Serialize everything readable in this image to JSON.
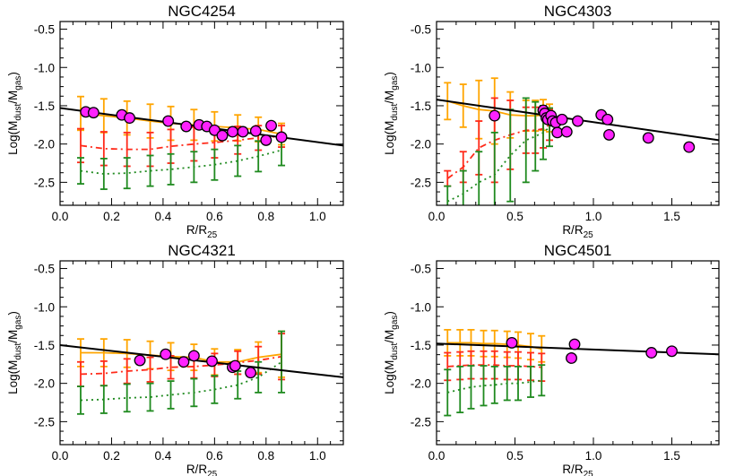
{
  "colors": {
    "orange": "#ffa500",
    "red": "#ff2a1a",
    "green": "#1f8a1f",
    "magenta": "#ff22ff",
    "fit": "#000000"
  },
  "chart_data": [
    {
      "type": "scatter",
      "title": "NGC4254",
      "xlabel": "R/R25",
      "ylabel": "Log(Mdust/Mgas)",
      "xlim": [
        0.0,
        1.1
      ],
      "ylim": [
        -2.8,
        -0.4
      ],
      "xticks": [
        0.0,
        0.2,
        0.4,
        0.6,
        0.8,
        1.0
      ],
      "xtick_labels": [
        "0.0",
        "0.2",
        "0.4",
        "0.6",
        "0.8",
        "1.0"
      ],
      "yticks": [
        -2.5,
        -2.0,
        -1.5,
        -1.0,
        -0.5
      ],
      "ytick_labels": [
        "-2.5",
        "-2.0",
        "-1.5",
        "-1.0",
        "-0.5"
      ],
      "fit_line": {
        "x": [
          0.0,
          1.1
        ],
        "y": [
          -1.53,
          -2.02
        ]
      },
      "points": {
        "x": [
          0.1,
          0.13,
          0.24,
          0.27,
          0.42,
          0.49,
          0.54,
          0.57,
          0.6,
          0.63,
          0.67,
          0.71,
          0.76,
          0.8,
          0.82,
          0.86
        ],
        "y": [
          -1.58,
          -1.59,
          -1.62,
          -1.66,
          -1.7,
          -1.77,
          -1.75,
          -1.77,
          -1.82,
          -1.89,
          -1.84,
          -1.84,
          -1.83,
          -1.95,
          -1.76,
          -1.91
        ]
      },
      "series": [
        {
          "name": "orange",
          "x": [
            0.08,
            0.17,
            0.26,
            0.35,
            0.43,
            0.52,
            0.6,
            0.69,
            0.77,
            0.86
          ],
          "y": [
            -1.6,
            -1.63,
            -1.66,
            -1.7,
            -1.73,
            -1.75,
            -1.77,
            -1.79,
            -1.81,
            -1.87
          ],
          "err": [
            0.22,
            0.22,
            0.22,
            0.22,
            0.22,
            0.2,
            0.19,
            0.17,
            0.16,
            0.14
          ]
        },
        {
          "name": "red",
          "x": [
            0.08,
            0.17,
            0.26,
            0.35,
            0.43,
            0.52,
            0.6,
            0.69,
            0.77,
            0.86
          ],
          "y": [
            -2.02,
            -2.06,
            -2.07,
            -2.07,
            -2.03,
            -2.0,
            -1.98,
            -1.95,
            -1.92,
            -1.9
          ],
          "err": [
            0.22,
            0.22,
            0.22,
            0.22,
            0.22,
            0.22,
            0.2,
            0.18,
            0.16,
            0.14
          ]
        },
        {
          "name": "green",
          "x": [
            0.08,
            0.17,
            0.26,
            0.35,
            0.43,
            0.52,
            0.6,
            0.69,
            0.77,
            0.86
          ],
          "y": [
            -2.35,
            -2.39,
            -2.38,
            -2.35,
            -2.33,
            -2.3,
            -2.27,
            -2.22,
            -2.16,
            -2.08
          ],
          "err": [
            0.17,
            0.2,
            0.2,
            0.2,
            0.2,
            0.2,
            0.2,
            0.2,
            0.2,
            0.2
          ]
        }
      ]
    },
    {
      "type": "scatter",
      "title": "NGC4303",
      "xlabel": "R/R25",
      "ylabel": "Log(Mdust/Mgas)",
      "xlim": [
        0.0,
        1.8
      ],
      "ylim": [
        -2.8,
        -0.4
      ],
      "xticks": [
        0.0,
        0.5,
        1.0,
        1.5
      ],
      "xtick_labels": [
        "0.0",
        "0.5",
        "1.0",
        "1.5"
      ],
      "yticks": [
        -2.5,
        -2.0,
        -1.5,
        -1.0,
        -0.5
      ],
      "ytick_labels": [
        "-2.5",
        "-2.0",
        "-1.5",
        "-1.0",
        "-0.5"
      ],
      "fit_line": {
        "x": [
          0.0,
          1.8
        ],
        "y": [
          -1.42,
          -1.95
        ]
      },
      "points": {
        "x": [
          0.37,
          0.68,
          0.69,
          0.7,
          0.71,
          0.73,
          0.74,
          0.76,
          0.77,
          0.8,
          0.83,
          0.9,
          1.05,
          1.09,
          1.1,
          1.35,
          1.61
        ],
        "y": [
          -1.63,
          -1.56,
          -1.6,
          -1.66,
          -1.68,
          -1.63,
          -1.7,
          -1.72,
          -1.85,
          -1.68,
          -1.84,
          -1.7,
          -1.62,
          -1.68,
          -1.88,
          -1.92,
          -2.04
        ]
      },
      "series": [
        {
          "name": "orange",
          "x": [
            0.07,
            0.17,
            0.27,
            0.37,
            0.47,
            0.57,
            0.63,
            0.68,
            0.72
          ],
          "y": [
            -1.44,
            -1.5,
            -1.55,
            -1.57,
            -1.62,
            -1.63,
            -1.63,
            -1.62,
            -1.66
          ],
          "err": [
            0.24,
            0.28,
            0.38,
            0.43,
            0.3,
            0.2,
            0.2,
            0.2,
            0.18
          ]
        },
        {
          "name": "red",
          "x": [
            0.07,
            0.17,
            0.27,
            0.37,
            0.47,
            0.57,
            0.63,
            0.68,
            0.72
          ],
          "y": [
            -2.45,
            -2.3,
            -2.05,
            -1.95,
            -1.88,
            -1.82,
            -1.82,
            -1.8,
            -1.75
          ],
          "err": [
            0.1,
            0.2,
            0.35,
            0.55,
            0.45,
            0.3,
            0.3,
            0.25,
            0.2
          ]
        },
        {
          "name": "green",
          "x": [
            0.07,
            0.17,
            0.27,
            0.37,
            0.47,
            0.57,
            0.63,
            0.68,
            0.72
          ],
          "y": [
            -2.75,
            -2.65,
            -2.5,
            -2.4,
            -2.15,
            -1.95,
            -1.9,
            -1.85,
            -1.78
          ],
          "err": [
            0.2,
            0.3,
            0.4,
            0.55,
            0.6,
            0.55,
            0.45,
            0.35,
            0.25
          ]
        }
      ]
    },
    {
      "type": "scatter",
      "title": "NGC4321",
      "xlabel": "R/R25",
      "ylabel": "Log(Mdust/Mgas)",
      "xlim": [
        0.0,
        1.1
      ],
      "ylim": [
        -2.8,
        -0.4
      ],
      "xticks": [
        0.0,
        0.2,
        0.4,
        0.6,
        0.8,
        1.0
      ],
      "xtick_labels": [
        "0.0",
        "0.2",
        "0.4",
        "0.6",
        "0.8",
        "1.0"
      ],
      "yticks": [
        -2.5,
        -2.0,
        -1.5,
        -1.0,
        -0.5
      ],
      "ytick_labels": [
        "-2.5",
        "-2.0",
        "-1.5",
        "-1.0",
        "-0.5"
      ],
      "fit_line": {
        "x": [
          0.0,
          1.1
        ],
        "y": [
          -1.5,
          -1.92
        ]
      },
      "points": {
        "x": [
          0.31,
          0.41,
          0.48,
          0.52,
          0.59,
          0.67,
          0.68,
          0.74
        ],
        "y": [
          -1.7,
          -1.62,
          -1.72,
          -1.64,
          -1.71,
          -1.79,
          -1.77,
          -1.86
        ]
      },
      "series": [
        {
          "name": "orange",
          "x": [
            0.08,
            0.17,
            0.26,
            0.35,
            0.43,
            0.52,
            0.6,
            0.69,
            0.77,
            0.86
          ],
          "y": [
            -1.6,
            -1.6,
            -1.61,
            -1.63,
            -1.65,
            -1.66,
            -1.72,
            -1.72,
            -1.66,
            -1.62
          ],
          "err": [
            0.18,
            0.18,
            0.18,
            0.18,
            0.18,
            0.17,
            0.17,
            0.16,
            0.2,
            0.3
          ]
        },
        {
          "name": "red",
          "x": [
            0.08,
            0.17,
            0.26,
            0.35,
            0.43,
            0.52,
            0.6,
            0.69,
            0.77,
            0.86
          ],
          "y": [
            -1.88,
            -1.87,
            -1.84,
            -1.82,
            -1.79,
            -1.78,
            -1.76,
            -1.73,
            -1.7,
            -1.65
          ],
          "err": [
            0.16,
            0.16,
            0.16,
            0.16,
            0.15,
            0.15,
            0.15,
            0.15,
            0.18,
            0.3
          ]
        },
        {
          "name": "green",
          "x": [
            0.08,
            0.17,
            0.26,
            0.35,
            0.43,
            0.52,
            0.6,
            0.69,
            0.77,
            0.86
          ],
          "y": [
            -2.22,
            -2.21,
            -2.19,
            -2.18,
            -2.15,
            -2.12,
            -2.08,
            -2.02,
            -1.92,
            -1.72
          ],
          "err": [
            0.18,
            0.18,
            0.18,
            0.18,
            0.18,
            0.18,
            0.18,
            0.18,
            0.2,
            0.4
          ]
        }
      ]
    },
    {
      "type": "scatter",
      "title": "NGC4501",
      "xlabel": "R/R25",
      "ylabel": "Log(Mdust/Mgas)",
      "xlim": [
        0.0,
        1.8
      ],
      "ylim": [
        -2.8,
        -0.4
      ],
      "xticks": [
        0.0,
        0.5,
        1.0,
        1.5
      ],
      "xtick_labels": [
        "0.0",
        "0.5",
        "1.0",
        "1.5"
      ],
      "yticks": [
        -2.5,
        -2.0,
        -1.5,
        -1.0,
        -0.5
      ],
      "ytick_labels": [
        "-2.5",
        "-2.0",
        "-1.5",
        "-1.0",
        "-0.5"
      ],
      "fit_line": {
        "x": [
          0.0,
          1.8
        ],
        "y": [
          -1.48,
          -1.62
        ]
      },
      "points": {
        "x": [
          0.48,
          0.86,
          0.88,
          1.37,
          1.5
        ],
        "y": [
          -1.47,
          -1.67,
          -1.49,
          -1.6,
          -1.58
        ]
      },
      "series": [
        {
          "name": "orange",
          "x": [
            0.07,
            0.15,
            0.22,
            0.3,
            0.37,
            0.45,
            0.52,
            0.6,
            0.67
          ],
          "y": [
            -1.47,
            -1.47,
            -1.47,
            -1.48,
            -1.48,
            -1.49,
            -1.5,
            -1.52,
            -1.55
          ],
          "err": [
            0.17,
            0.17,
            0.17,
            0.17,
            0.17,
            0.17,
            0.17,
            0.17,
            0.17
          ]
        },
        {
          "name": "red",
          "x": [
            0.07,
            0.15,
            0.22,
            0.3,
            0.37,
            0.45,
            0.52,
            0.6,
            0.67
          ],
          "y": [
            -1.78,
            -1.77,
            -1.76,
            -1.76,
            -1.76,
            -1.77,
            -1.77,
            -1.78,
            -1.79
          ],
          "err": [
            0.18,
            0.18,
            0.18,
            0.18,
            0.18,
            0.18,
            0.18,
            0.18,
            0.18
          ]
        },
        {
          "name": "green",
          "x": [
            0.07,
            0.15,
            0.22,
            0.3,
            0.37,
            0.45,
            0.52,
            0.6,
            0.67
          ],
          "y": [
            -2.12,
            -2.08,
            -2.05,
            -2.03,
            -2.02,
            -2.0,
            -2.0,
            -1.98,
            -1.96
          ],
          "err": [
            0.3,
            0.3,
            0.28,
            0.26,
            0.24,
            0.22,
            0.22,
            0.2,
            0.2
          ]
        }
      ]
    }
  ]
}
